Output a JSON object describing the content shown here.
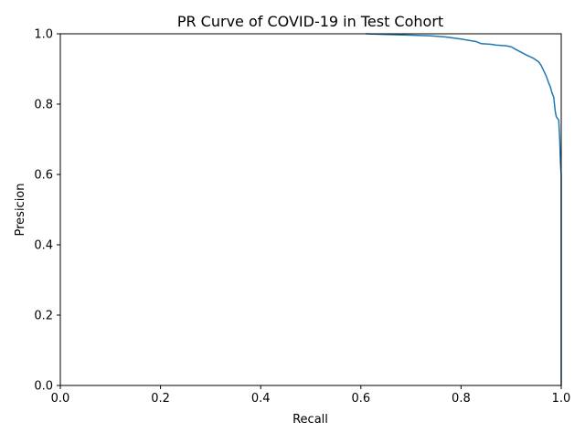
{
  "chart_data": {
    "type": "line",
    "title": "PR Curve of COVID-19 in Test Cohort",
    "xlabel": "Recall",
    "ylabel": "Presicion",
    "xlim": [
      0.0,
      1.0
    ],
    "ylim": [
      0.0,
      1.0
    ],
    "xticks": [
      "0.0",
      "0.2",
      "0.4",
      "0.6",
      "0.8",
      "1.0"
    ],
    "yticks": [
      "0.0",
      "0.2",
      "0.4",
      "0.6",
      "0.8",
      "1.0"
    ],
    "grid": false,
    "legend": "none",
    "series": [
      {
        "color": "#1f77b4",
        "x": [
          0.61,
          0.65,
          0.7,
          0.74,
          0.77,
          0.8,
          0.83,
          0.84,
          0.86,
          0.87,
          0.89,
          0.9,
          0.91,
          0.93,
          0.945,
          0.955,
          0.96,
          0.965,
          0.97,
          0.975,
          0.978,
          0.98,
          0.982,
          0.985,
          0.988,
          0.99,
          0.992,
          0.995,
          0.997,
          0.998,
          0.999,
          1.0,
          1.0,
          1.0
        ],
        "y": [
          1.0,
          0.998,
          0.996,
          0.994,
          0.991,
          0.985,
          0.978,
          0.972,
          0.97,
          0.968,
          0.966,
          0.963,
          0.955,
          0.94,
          0.93,
          0.92,
          0.91,
          0.895,
          0.88,
          0.86,
          0.85,
          0.84,
          0.83,
          0.82,
          0.78,
          0.765,
          0.76,
          0.755,
          0.7,
          0.65,
          0.62,
          0.6,
          0.3,
          0.0
        ]
      }
    ]
  }
}
